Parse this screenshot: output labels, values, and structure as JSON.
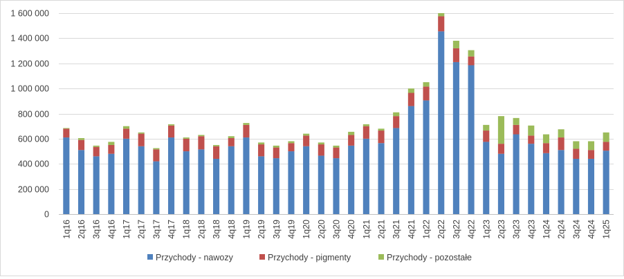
{
  "chart_data": {
    "type": "bar",
    "stacked": true,
    "title": "",
    "xlabel": "",
    "ylabel": "",
    "ylim": [
      0,
      1600000
    ],
    "yticks": [
      0,
      200000,
      400000,
      600000,
      800000,
      1000000,
      1200000,
      1400000,
      1600000
    ],
    "ytick_labels": [
      "0",
      "200 000",
      "400 000",
      "600 000",
      "800 000",
      "1 000 000",
      "1 200 000",
      "1 400 000",
      "1 600 000"
    ],
    "grid": "horizontal",
    "legend_position": "bottom",
    "categories": [
      "1q16",
      "2q16",
      "3q16",
      "4q16",
      "1q17",
      "2q17",
      "3q17",
      "4q17",
      "1q18",
      "2q18",
      "3q18",
      "4q18",
      "1q19",
      "2q19",
      "3q19",
      "4q19",
      "1q20",
      "2q20",
      "3q20",
      "4q20",
      "1q21",
      "2q21",
      "3q21",
      "4q21",
      "1q22",
      "2q22",
      "3q22",
      "4q22",
      "1q23",
      "2q23",
      "3q23",
      "4q23",
      "1q24",
      "2q24",
      "3q24",
      "4q24",
      "1q25"
    ],
    "series": [
      {
        "name": "Przychody - nawozy",
        "color": "#4f81bd",
        "values": [
          610000,
          510000,
          460000,
          480000,
          600000,
          540000,
          420000,
          610000,
          500000,
          515000,
          440000,
          540000,
          610000,
          460000,
          445000,
          500000,
          540000,
          465000,
          445000,
          545000,
          600000,
          565000,
          685000,
          860000,
          905000,
          1455000,
          1210000,
          1185000,
          575000,
          480000,
          635000,
          560000,
          485000,
          510000,
          440000,
          440000,
          505000
        ]
      },
      {
        "name": "Przychody - pigmenty",
        "color": "#c0504d",
        "values": [
          70000,
          80000,
          75000,
          70000,
          80000,
          100000,
          95000,
          95000,
          100000,
          105000,
          100000,
          65000,
          100000,
          95000,
          85000,
          65000,
          85000,
          90000,
          85000,
          85000,
          100000,
          100000,
          95000,
          105000,
          110000,
          120000,
          110000,
          70000,
          90000,
          80000,
          75000,
          65000,
          80000,
          100000,
          80000,
          70000,
          70000
        ]
      },
      {
        "name": "Przychody - pozostałe",
        "color": "#9bbb59",
        "values": [
          5000,
          15000,
          10000,
          25000,
          20000,
          10000,
          10000,
          10000,
          10000,
          10000,
          10000,
          15000,
          15000,
          15000,
          15000,
          15000,
          15000,
          15000,
          15000,
          25000,
          15000,
          15000,
          30000,
          35000,
          35000,
          25000,
          60000,
          50000,
          45000,
          220000,
          55000,
          80000,
          70000,
          65000,
          60000,
          70000,
          75000
        ]
      }
    ]
  }
}
